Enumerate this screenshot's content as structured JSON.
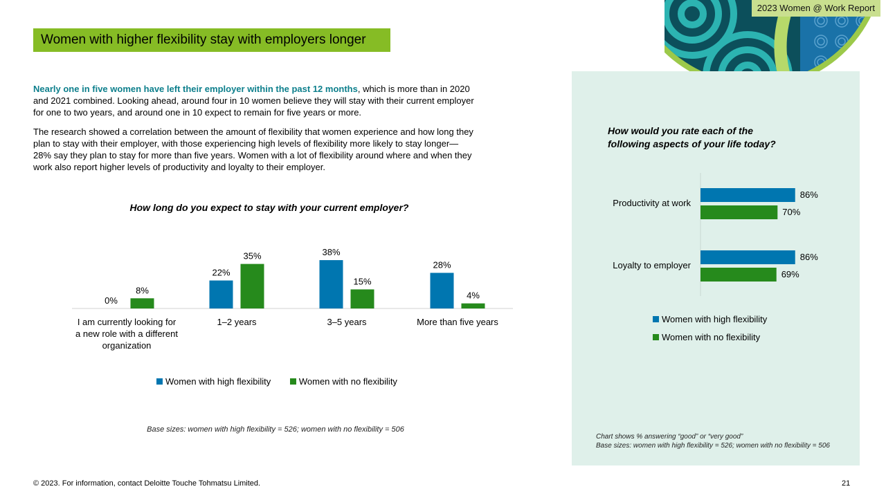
{
  "header": {
    "report_tag": "2023 Women @ Work Report",
    "title": "Women with higher flexibility stay with employers longer"
  },
  "body": {
    "para1_highlight": "Nearly one in five women have left their employer within the past 12 months",
    "para1_rest": ", which is more than in 2020 and 2021 combined. Looking ahead, around four in 10 women believe they will stay with their current employer for one to two years, and around one in 10 expect to remain for five years or more.",
    "para2": "The research showed a correlation between the amount of flexibility that women experience and how long they plan to stay with their employer, with those experiencing high levels of flexibility more likely to stay longer—28% say they plan to stay for more than five years. Women with a lot of flexibility around where and when they work also report higher levels of productivity and loyalty to their employer."
  },
  "colors": {
    "high": "#0076b0",
    "none": "#268a1c",
    "title_bar": "#86bc25",
    "panel": "#dff0ea",
    "highlight": "#0d7f8c"
  },
  "chart_data": [
    {
      "type": "bar",
      "title": "How long do you expect to stay with your current employer?",
      "categories": [
        [
          "I am currently looking for",
          "a new role with a different",
          "organization"
        ],
        [
          "1–2 years"
        ],
        [
          "3–5 years"
        ],
        [
          "More than five years"
        ]
      ],
      "series": [
        {
          "name": "Women with high flexibility",
          "values": [
            0,
            22,
            38,
            28
          ],
          "labels": [
            "0%",
            "22%",
            "38%",
            "28%"
          ]
        },
        {
          "name": "Women with no flexibility",
          "values": [
            8,
            35,
            15,
            4
          ],
          "labels": [
            "8%",
            "35%",
            "15%",
            "4%"
          ]
        }
      ],
      "ylim": [
        0,
        40
      ],
      "grid": false,
      "legend": "bottom",
      "note": "Base sizes: women with high flexibility = 526; women with no flexibility = 506"
    },
    {
      "type": "bar",
      "orientation": "horizontal",
      "title": [
        "How would you rate each of the",
        "following aspects of your life today?"
      ],
      "categories": [
        "Productivity at work",
        "Loyalty to employer"
      ],
      "series": [
        {
          "name": "Women with high flexibility",
          "values": [
            86,
            86
          ],
          "labels": [
            "86%",
            "86%"
          ]
        },
        {
          "name": "Women with no flexibility",
          "values": [
            70,
            69
          ],
          "labels": [
            "70%",
            "69%"
          ]
        }
      ],
      "xlim": [
        0,
        100
      ],
      "grid": false,
      "legend": "bottom",
      "note": [
        "Chart shows % answering “good” or “very good”",
        "Base sizes: women with high flexibility = 526; women with no flexibility = 506"
      ]
    }
  ],
  "footer": {
    "copyright": "© 2023. For information, contact Deloitte Touche Tohmatsu Limited.",
    "page_number": "21"
  }
}
